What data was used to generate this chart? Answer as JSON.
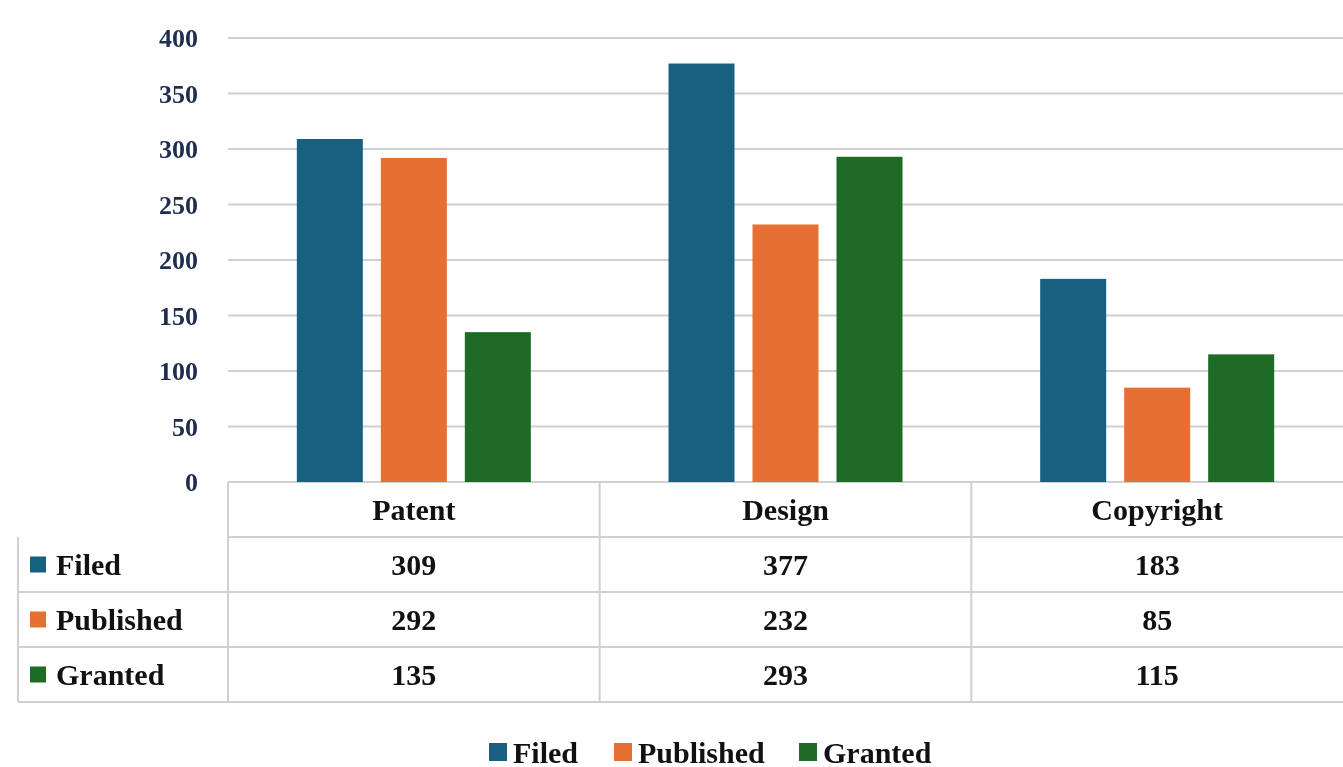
{
  "chart_data": {
    "type": "bar",
    "categories": [
      "Patent",
      "Design",
      "Copyright"
    ],
    "series": [
      {
        "name": "Filed",
        "color": "#17607f",
        "values": [
          309,
          377,
          183
        ]
      },
      {
        "name": "Published",
        "color": "#e66f33",
        "values": [
          292,
          232,
          85
        ]
      },
      {
        "name": "Granted",
        "color": "#1d6b27",
        "values": [
          135,
          293,
          115
        ]
      }
    ],
    "ylim": [
      0,
      400
    ],
    "yticks": [
      0,
      50,
      100,
      150,
      200,
      250,
      300,
      350,
      400
    ],
    "grid": "y",
    "legend": "bottom",
    "data_labels": true
  }
}
